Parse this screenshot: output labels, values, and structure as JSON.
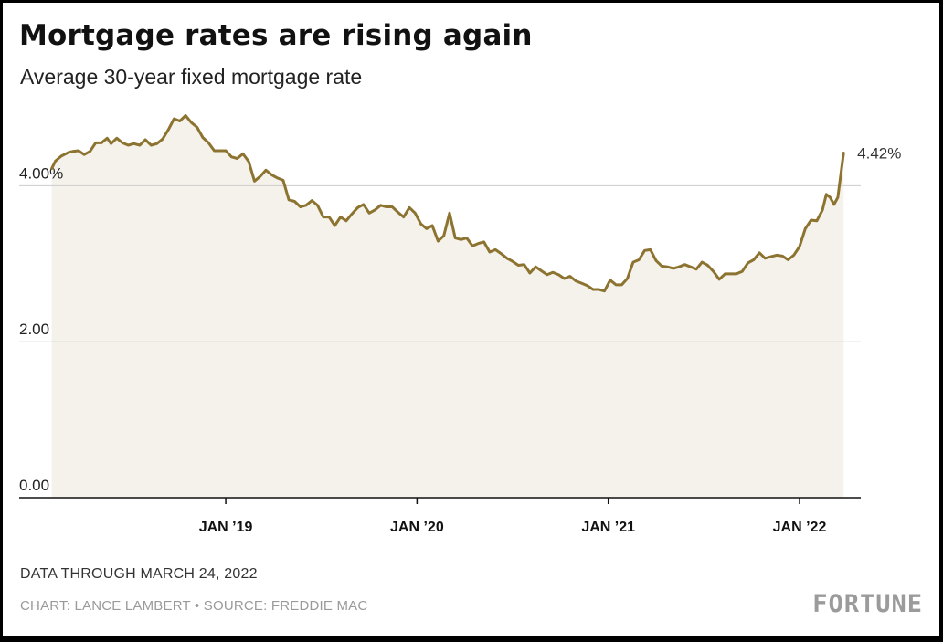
{
  "chart_data": {
    "type": "area",
    "title": "Mortgage rates are rising again",
    "subtitle": "Average 30-year fixed mortgage rate",
    "ylabel": "",
    "xlabel": "",
    "ylim": [
      0,
      5
    ],
    "y_ticks": [
      {
        "value": 4,
        "label": "4.00%"
      },
      {
        "value": 2,
        "label": "2.00"
      },
      {
        "value": 0,
        "label": "0.00"
      }
    ],
    "x_ticks": [
      {
        "value": 2019.0,
        "label": "JAN ’19"
      },
      {
        "value": 2020.0,
        "label": "JAN ’20"
      },
      {
        "value": 2021.0,
        "label": "JAN ’21"
      },
      {
        "value": 2022.0,
        "label": "JAN ’22"
      }
    ],
    "xlim": [
      2017.92,
      2022.32
    ],
    "series": [
      {
        "name": "Average 30-year fixed mortgage rate",
        "x_unit": "decimal year",
        "points": [
          [
            2018.09,
            4.22
          ],
          [
            2018.11,
            4.32
          ],
          [
            2018.14,
            4.38
          ],
          [
            2018.18,
            4.43
          ],
          [
            2018.2,
            4.44
          ],
          [
            2018.23,
            4.45
          ],
          [
            2018.26,
            4.4
          ],
          [
            2018.29,
            4.44
          ],
          [
            2018.32,
            4.55
          ],
          [
            2018.35,
            4.55
          ],
          [
            2018.38,
            4.61
          ],
          [
            2018.4,
            4.54
          ],
          [
            2018.43,
            4.61
          ],
          [
            2018.46,
            4.55
          ],
          [
            2018.49,
            4.52
          ],
          [
            2018.52,
            4.54
          ],
          [
            2018.55,
            4.52
          ],
          [
            2018.58,
            4.59
          ],
          [
            2018.61,
            4.52
          ],
          [
            2018.64,
            4.54
          ],
          [
            2018.67,
            4.6
          ],
          [
            2018.7,
            4.72
          ],
          [
            2018.73,
            4.86
          ],
          [
            2018.76,
            4.83
          ],
          [
            2018.79,
            4.9
          ],
          [
            2018.82,
            4.81
          ],
          [
            2018.85,
            4.75
          ],
          [
            2018.88,
            4.62
          ],
          [
            2018.91,
            4.55
          ],
          [
            2018.94,
            4.45
          ],
          [
            2018.97,
            4.45
          ],
          [
            2019.0,
            4.45
          ],
          [
            2019.03,
            4.37
          ],
          [
            2019.06,
            4.35
          ],
          [
            2019.09,
            4.41
          ],
          [
            2019.12,
            4.31
          ],
          [
            2019.15,
            4.06
          ],
          [
            2019.18,
            4.12
          ],
          [
            2019.21,
            4.2
          ],
          [
            2019.24,
            4.14
          ],
          [
            2019.27,
            4.1
          ],
          [
            2019.3,
            4.07
          ],
          [
            2019.33,
            3.82
          ],
          [
            2019.36,
            3.8
          ],
          [
            2019.39,
            3.73
          ],
          [
            2019.42,
            3.75
          ],
          [
            2019.45,
            3.81
          ],
          [
            2019.48,
            3.75
          ],
          [
            2019.51,
            3.6
          ],
          [
            2019.54,
            3.6
          ],
          [
            2019.57,
            3.49
          ],
          [
            2019.6,
            3.6
          ],
          [
            2019.63,
            3.55
          ],
          [
            2019.66,
            3.64
          ],
          [
            2019.69,
            3.72
          ],
          [
            2019.72,
            3.76
          ],
          [
            2019.75,
            3.65
          ],
          [
            2019.78,
            3.69
          ],
          [
            2019.81,
            3.75
          ],
          [
            2019.84,
            3.73
          ],
          [
            2019.87,
            3.73
          ],
          [
            2019.9,
            3.66
          ],
          [
            2019.93,
            3.6
          ],
          [
            2019.96,
            3.72
          ],
          [
            2019.99,
            3.65
          ],
          [
            2020.02,
            3.51
          ],
          [
            2020.05,
            3.45
          ],
          [
            2020.08,
            3.49
          ],
          [
            2020.11,
            3.29
          ],
          [
            2020.14,
            3.36
          ],
          [
            2020.17,
            3.65
          ],
          [
            2020.2,
            3.33
          ],
          [
            2020.23,
            3.31
          ],
          [
            2020.26,
            3.33
          ],
          [
            2020.29,
            3.23
          ],
          [
            2020.32,
            3.26
          ],
          [
            2020.35,
            3.28
          ],
          [
            2020.38,
            3.15
          ],
          [
            2020.41,
            3.18
          ],
          [
            2020.44,
            3.13
          ],
          [
            2020.47,
            3.07
          ],
          [
            2020.5,
            3.03
          ],
          [
            2020.53,
            2.98
          ],
          [
            2020.56,
            2.99
          ],
          [
            2020.59,
            2.88
          ],
          [
            2020.62,
            2.96
          ],
          [
            2020.65,
            2.91
          ],
          [
            2020.68,
            2.86
          ],
          [
            2020.71,
            2.89
          ],
          [
            2020.74,
            2.86
          ],
          [
            2020.77,
            2.81
          ],
          [
            2020.8,
            2.84
          ],
          [
            2020.83,
            2.78
          ],
          [
            2020.86,
            2.75
          ],
          [
            2020.89,
            2.72
          ],
          [
            2020.92,
            2.67
          ],
          [
            2020.95,
            2.67
          ],
          [
            2020.98,
            2.65
          ],
          [
            2021.01,
            2.79
          ],
          [
            2021.04,
            2.73
          ],
          [
            2021.07,
            2.73
          ],
          [
            2021.1,
            2.81
          ],
          [
            2021.13,
            3.02
          ],
          [
            2021.16,
            3.05
          ],
          [
            2021.19,
            3.17
          ],
          [
            2021.22,
            3.18
          ],
          [
            2021.25,
            3.04
          ],
          [
            2021.28,
            2.97
          ],
          [
            2021.31,
            2.96
          ],
          [
            2021.34,
            2.94
          ],
          [
            2021.37,
            2.96
          ],
          [
            2021.4,
            2.99
          ],
          [
            2021.43,
            2.96
          ],
          [
            2021.46,
            2.93
          ],
          [
            2021.49,
            3.02
          ],
          [
            2021.52,
            2.98
          ],
          [
            2021.55,
            2.9
          ],
          [
            2021.58,
            2.8
          ],
          [
            2021.61,
            2.87
          ],
          [
            2021.64,
            2.87
          ],
          [
            2021.67,
            2.87
          ],
          [
            2021.7,
            2.9
          ],
          [
            2021.73,
            3.01
          ],
          [
            2021.76,
            3.05
          ],
          [
            2021.79,
            3.14
          ],
          [
            2021.82,
            3.07
          ],
          [
            2021.85,
            3.09
          ],
          [
            2021.88,
            3.11
          ],
          [
            2021.91,
            3.1
          ],
          [
            2021.94,
            3.05
          ],
          [
            2021.97,
            3.11
          ],
          [
            2022.0,
            3.22
          ],
          [
            2022.03,
            3.45
          ],
          [
            2022.06,
            3.56
          ],
          [
            2022.09,
            3.55
          ],
          [
            2022.12,
            3.69
          ],
          [
            2022.14,
            3.89
          ],
          [
            2022.16,
            3.85
          ],
          [
            2022.18,
            3.76
          ],
          [
            2022.2,
            3.85
          ],
          [
            2022.23,
            4.42
          ]
        ]
      }
    ],
    "end_label": "4.42%",
    "colors": {
      "line": "#8c7430",
      "fill": "#f5f2ec",
      "grid": "#cccccc",
      "axis": "#111111"
    }
  },
  "footer": {
    "note": "DATA THROUGH MARCH 24, 2022",
    "credit": "CHART: LANCE LAMBERT • SOURCE: FREDDIE MAC",
    "logo": "FORTUNE"
  }
}
